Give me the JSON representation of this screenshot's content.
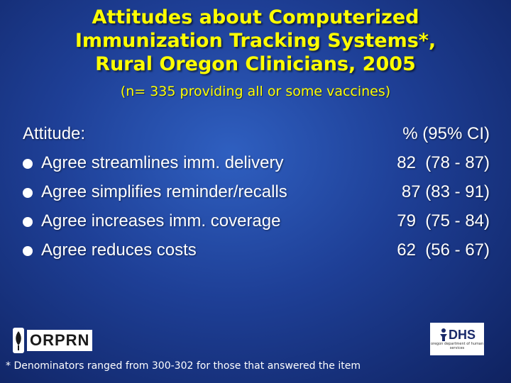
{
  "slide": {
    "title_lines": [
      "Attitudes about Computerized",
      "Immunization Tracking Systems*,",
      "Rural Oregon Clinicians, 2005"
    ],
    "subtitle": "(n= 335 providing all or some vaccines)",
    "header": {
      "attitude": "Attitude:",
      "value": " % (95% CI)"
    },
    "rows": [
      {
        "attitude": "Agree streamlines imm. delivery",
        "value": "82  (78 - 87)"
      },
      {
        "attitude": "Agree simplifies reminder/recalls",
        "value": "87 (83 - 91)"
      },
      {
        "attitude": "Agree increases imm. coverage",
        "value": "79  (75 - 84)"
      },
      {
        "attitude": "Agree reduces costs",
        "value": "62  (56 - 67)"
      }
    ],
    "footnote": "* Denominators ranged from 300-302 for those that answered the item",
    "logos": {
      "left_text": "ORPRN",
      "right_text": "DHS",
      "right_small": "oregon department of human services"
    }
  },
  "colors": {
    "title": "#ffff00",
    "text": "#ffffff",
    "background": "#1e3f96"
  }
}
